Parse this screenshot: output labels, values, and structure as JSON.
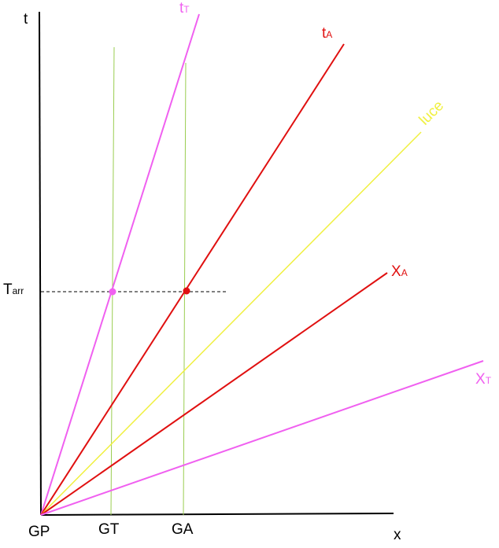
{
  "axes": {
    "t": "t",
    "x": "x"
  },
  "points": {
    "origin": "GP",
    "g_t": "GT",
    "g_a": "GA"
  },
  "arrival": {
    "main": "T",
    "sub": "arr"
  },
  "lines": {
    "t_T": {
      "main": "t",
      "sub": "T"
    },
    "t_A": {
      "main": "t",
      "sub": "A"
    },
    "light": "luce",
    "X_A": {
      "main": "X",
      "sub": "A"
    },
    "X_T": {
      "main": "X",
      "sub": "T"
    }
  }
}
